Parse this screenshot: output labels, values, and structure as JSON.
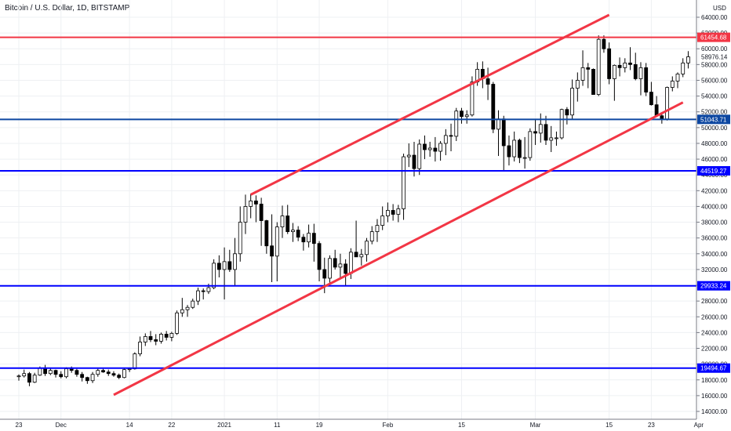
{
  "chart_data": {
    "type": "candlestick",
    "title": "Bitcoin / U.S. Dollar, 1D, BITSTAMP",
    "currency": "USD",
    "ylim": [
      14000,
      64000
    ],
    "y_ticks": [
      14000,
      16000,
      18000,
      20000,
      22000,
      24000,
      26000,
      28000,
      30000,
      32000,
      34000,
      36000,
      38000,
      40000,
      42000,
      44000,
      46000,
      48000,
      50000,
      52000,
      54000,
      56000,
      58000,
      60000,
      62000,
      64000
    ],
    "x_ticks": [
      {
        "label": "23",
        "index": 0
      },
      {
        "label": "Dec",
        "index": 8
      },
      {
        "label": "14",
        "index": 21
      },
      {
        "label": "22",
        "index": 29
      },
      {
        "label": "2021",
        "index": 39
      },
      {
        "label": "11",
        "index": 49
      },
      {
        "label": "19",
        "index": 57
      },
      {
        "label": "Feb",
        "index": 70
      },
      {
        "label": "15",
        "index": 84
      },
      {
        "label": "Mar",
        "index": 98
      },
      {
        "label": "15",
        "index": 112
      },
      {
        "label": "23",
        "index": 120
      },
      {
        "label": "Apr",
        "index": 129
      }
    ],
    "horizontal_levels": [
      {
        "value": 61454.68,
        "label": "61454.68",
        "color": "#f23645"
      },
      {
        "value": 51043.71,
        "label": "51043.71",
        "color": "#0d47a1"
      },
      {
        "value": 44519.27,
        "label": "44519.27",
        "color": "#0000ff"
      },
      {
        "value": 29933.24,
        "label": "29933.24",
        "color": "#0000ff"
      },
      {
        "value": 19494.67,
        "label": "19494.67",
        "color": "#0000ff"
      }
    ],
    "current_price": {
      "value": 58976.14,
      "label": "58976.14"
    },
    "trend_lines": [
      {
        "name": "upper-channel",
        "from": {
          "index": 44,
          "value": 41500
        },
        "to": {
          "index": 112,
          "value": 64300
        },
        "color": "#f23645"
      },
      {
        "name": "lower-channel",
        "from": {
          "index": 18,
          "value": 16100
        },
        "to": {
          "index": 126,
          "value": 53200
        },
        "color": "#f23645"
      }
    ],
    "candles": [
      [
        18400,
        18700,
        17900,
        18500
      ],
      [
        18500,
        19300,
        18300,
        18800
      ],
      [
        18800,
        19000,
        17200,
        17700
      ],
      [
        17700,
        18900,
        17600,
        18600
      ],
      [
        18600,
        19700,
        18500,
        19500
      ],
      [
        19500,
        19900,
        18500,
        18800
      ],
      [
        18800,
        19500,
        18600,
        19200
      ],
      [
        19200,
        19300,
        18300,
        18700
      ],
      [
        18700,
        19100,
        18200,
        18400
      ],
      [
        18400,
        19600,
        18200,
        19400
      ],
      [
        19400,
        19700,
        18900,
        19200
      ],
      [
        19200,
        19400,
        18400,
        18700
      ],
      [
        18700,
        19000,
        17800,
        18300
      ],
      [
        18300,
        18400,
        17500,
        17900
      ],
      [
        17900,
        19000,
        17600,
        18700
      ],
      [
        18700,
        19400,
        18400,
        19200
      ],
      [
        19200,
        19400,
        18900,
        19000
      ],
      [
        19000,
        19300,
        18500,
        18800
      ],
      [
        18800,
        19100,
        18400,
        18600
      ],
      [
        18600,
        18800,
        18100,
        18300
      ],
      [
        18300,
        19500,
        18200,
        19300
      ],
      [
        19300,
        19500,
        19000,
        19400
      ],
      [
        19400,
        21500,
        19300,
        21300
      ],
      [
        21300,
        23500,
        21000,
        22800
      ],
      [
        22800,
        23900,
        22300,
        23500
      ],
      [
        23500,
        24200,
        22800,
        23100
      ],
      [
        23100,
        23800,
        22400,
        22900
      ],
      [
        22900,
        24000,
        22600,
        23800
      ],
      [
        23800,
        24200,
        23000,
        23400
      ],
      [
        23400,
        24100,
        22900,
        23900
      ],
      [
        23900,
        26800,
        23700,
        26500
      ],
      [
        26500,
        28400,
        26000,
        26900
      ],
      [
        26900,
        27500,
        26000,
        27200
      ],
      [
        27200,
        28300,
        27000,
        28000
      ],
      [
        28000,
        29700,
        27500,
        29300
      ],
      [
        29300,
        29600,
        28200,
        29200
      ],
      [
        29200,
        30200,
        28900,
        29700
      ],
      [
        29700,
        33300,
        29500,
        32800
      ],
      [
        32800,
        33800,
        31000,
        32000
      ],
      [
        32000,
        34800,
        28200,
        33000
      ],
      [
        33000,
        34500,
        31700,
        32000
      ],
      [
        32000,
        36000,
        30000,
        34000
      ],
      [
        34000,
        40000,
        33000,
        38000
      ],
      [
        38000,
        41500,
        36500,
        40000
      ],
      [
        40000,
        41600,
        38500,
        40700
      ],
      [
        40700,
        41400,
        38000,
        40300
      ],
      [
        40300,
        41100,
        35000,
        38200
      ],
      [
        38200,
        38300,
        34000,
        35000
      ],
      [
        35000,
        39000,
        30400,
        33700
      ],
      [
        33700,
        38000,
        30500,
        37400
      ],
      [
        37400,
        40100,
        36000,
        38800
      ],
      [
        38800,
        40200,
        36500,
        36800
      ],
      [
        36800,
        37900,
        35500,
        37000
      ],
      [
        37000,
        37500,
        35600,
        36100
      ],
      [
        36100,
        36500,
        34400,
        35500
      ],
      [
        35500,
        37700,
        34800,
        36600
      ],
      [
        36600,
        37800,
        33000,
        35300
      ],
      [
        35300,
        35600,
        30500,
        32000
      ],
      [
        32000,
        33500,
        29000,
        30900
      ],
      [
        30900,
        33800,
        30000,
        33400
      ],
      [
        33400,
        34500,
        32000,
        32300
      ],
      [
        32300,
        34000,
        31000,
        32700
      ],
      [
        32700,
        33300,
        30000,
        31500
      ],
      [
        31500,
        34700,
        30800,
        34200
      ],
      [
        34200,
        38200,
        33600,
        33600
      ],
      [
        33600,
        34600,
        32500,
        33900
      ],
      [
        33900,
        36000,
        33000,
        35600
      ],
      [
        35600,
        37500,
        35200,
        36800
      ],
      [
        36800,
        38400,
        35500,
        37600
      ],
      [
        37600,
        40000,
        37000,
        38800
      ],
      [
        38800,
        40500,
        38000,
        39500
      ],
      [
        39500,
        40300,
        38200,
        39000
      ],
      [
        39000,
        40200,
        38000,
        39700
      ],
      [
        39700,
        46700,
        38300,
        46300
      ],
      [
        46300,
        48000,
        45000,
        46500
      ],
      [
        46500,
        48200,
        43800,
        44800
      ],
      [
        44800,
        48500,
        44000,
        47900
      ],
      [
        47900,
        49000,
        46000,
        47200
      ],
      [
        47200,
        48200,
        46300,
        47400
      ],
      [
        47400,
        48800,
        45700,
        47000
      ],
      [
        47000,
        48300,
        45800,
        48000
      ],
      [
        48000,
        49800,
        46500,
        49000
      ],
      [
        49000,
        50500,
        47000,
        48900
      ],
      [
        48900,
        52500,
        48300,
        52100
      ],
      [
        52100,
        52500,
        50500,
        51400
      ],
      [
        51400,
        52200,
        50500,
        51600
      ],
      [
        51600,
        56500,
        51400,
        55800
      ],
      [
        55800,
        58300,
        55300,
        57400
      ],
      [
        57400,
        58400,
        55000,
        56200
      ],
      [
        56200,
        57600,
        53500,
        55500
      ],
      [
        55500,
        55800,
        49300,
        49800
      ],
      [
        49800,
        52200,
        46400,
        51100
      ],
      [
        51100,
        51500,
        44500,
        47700
      ],
      [
        47700,
        49000,
        45200,
        46300
      ],
      [
        46300,
        49500,
        45700,
        48400
      ],
      [
        48400,
        48600,
        45500,
        46200
      ],
      [
        46200,
        48800,
        44800,
        46200
      ],
      [
        46200,
        49900,
        45800,
        49500
      ],
      [
        49500,
        51000,
        47800,
        49300
      ],
      [
        49300,
        51800,
        48100,
        50400
      ],
      [
        50400,
        51500,
        47800,
        48400
      ],
      [
        48400,
        50200,
        46900,
        48700
      ],
      [
        48700,
        49500,
        47700,
        48700
      ],
      [
        48700,
        52400,
        48500,
        52300
      ],
      [
        52300,
        52600,
        50400,
        51600
      ],
      [
        51600,
        56100,
        51000,
        55000
      ],
      [
        55000,
        57000,
        53300,
        56000
      ],
      [
        56000,
        59800,
        55300,
        57600
      ],
      [
        57600,
        58200,
        55000,
        57400
      ],
      [
        57400,
        57500,
        54400,
        54200
      ],
      [
        54200,
        61700,
        54000,
        61200
      ],
      [
        61200,
        61700,
        59500,
        60000
      ],
      [
        60000,
        60800,
        55500,
        56200
      ],
      [
        56200,
        58000,
        53400,
        57900
      ],
      [
        57900,
        58900,
        56500,
        57600
      ],
      [
        57600,
        58800,
        57000,
        58200
      ],
      [
        58200,
        60200,
        57300,
        58000
      ],
      [
        58000,
        59500,
        56000,
        56200
      ],
      [
        56200,
        58300,
        54100,
        57600
      ],
      [
        57600,
        58200,
        54000,
        54500
      ],
      [
        54500,
        55800,
        52800,
        52900
      ],
      [
        52900,
        54000,
        51500,
        51500
      ],
      [
        51500,
        51900,
        50500,
        51100
      ],
      [
        51100,
        55200,
        50900,
        55100
      ],
      [
        55100,
        56500,
        54600,
        55900
      ],
      [
        55900,
        57000,
        55000,
        56800
      ],
      [
        56800,
        58800,
        56400,
        58200
      ],
      [
        58200,
        59700,
        57500,
        58976
      ]
    ]
  }
}
